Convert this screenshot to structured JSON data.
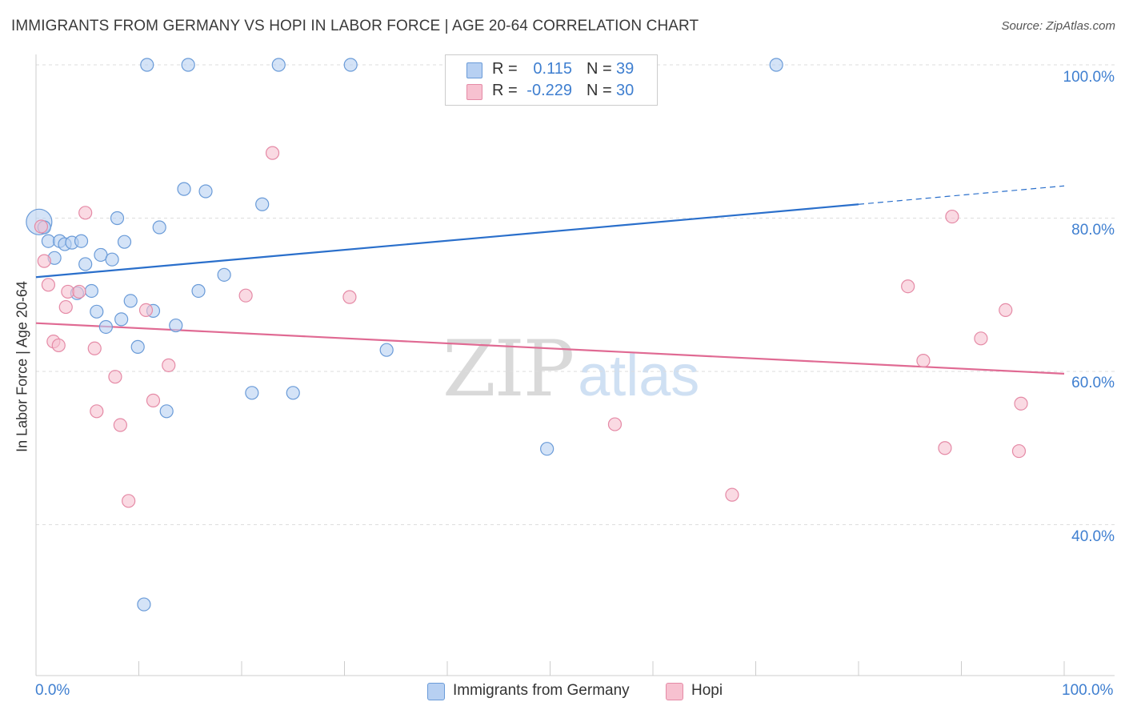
{
  "title": "IMMIGRANTS FROM GERMANY VS HOPI IN LABOR FORCE | AGE 20-64 CORRELATION CHART",
  "source": "Source: ZipAtlas.com",
  "watermark": {
    "zip": "ZIP",
    "atlas": "atlas"
  },
  "colors": {
    "blue_fill": "#b7d0f2",
    "blue_stroke": "#6a9bd8",
    "blue_line": "#2a6fcb",
    "pink_fill": "#f7c1d0",
    "pink_stroke": "#e58aa6",
    "pink_line": "#e06a93",
    "tick_text": "#3f7fd0",
    "grid": "#dddddd"
  },
  "stats": [
    {
      "swatch": "blue",
      "r_label": "R =",
      "r_value": "0.115",
      "n_label": "N =",
      "n_value": "39"
    },
    {
      "swatch": "pink",
      "r_label": "R =",
      "r_value": "-0.229",
      "n_label": "N =",
      "n_value": "30"
    }
  ],
  "legend": [
    {
      "label": "Immigrants from Germany",
      "swatch": "blue"
    },
    {
      "label": "Hopi",
      "swatch": "pink"
    }
  ],
  "chart_data": {
    "type": "scatter",
    "title": "IMMIGRANTS FROM GERMANY VS HOPI IN LABOR FORCE | AGE 20-64 CORRELATION CHART",
    "xlabel": "",
    "ylabel": "In Labor Force | Age 20-64",
    "xlim": [
      0,
      100
    ],
    "ylim": [
      21,
      102
    ],
    "y_ticks": [
      {
        "value": 40,
        "label": "40.0%"
      },
      {
        "value": 60,
        "label": "60.0%"
      },
      {
        "value": 80,
        "label": "80.0%"
      },
      {
        "value": 100,
        "label": "100.0%"
      }
    ],
    "x_tick_labels": {
      "min": "0.0%",
      "max": "100.0%"
    },
    "grid": true,
    "series": [
      {
        "name": "Immigrants from Germany",
        "r": 0.115,
        "n": 39,
        "trend": {
          "x0": 0,
          "y0": 72.3,
          "x1": 80,
          "y1": 81.8,
          "dash_to_x": 100,
          "dash_to_y": 84.2
        },
        "points": [
          {
            "x": 0.3,
            "y": 79.5,
            "big": true
          },
          {
            "x": 0.8,
            "y": 78.8
          },
          {
            "x": 1.2,
            "y": 77.0
          },
          {
            "x": 1.8,
            "y": 74.8
          },
          {
            "x": 2.3,
            "y": 77.0
          },
          {
            "x": 2.8,
            "y": 76.6
          },
          {
            "x": 3.5,
            "y": 76.8
          },
          {
            "x": 4.0,
            "y": 70.2
          },
          {
            "x": 4.4,
            "y": 77.0
          },
          {
            "x": 4.8,
            "y": 74.0
          },
          {
            "x": 5.4,
            "y": 70.5
          },
          {
            "x": 5.9,
            "y": 67.8
          },
          {
            "x": 6.3,
            "y": 75.2
          },
          {
            "x": 6.8,
            "y": 65.8
          },
          {
            "x": 7.4,
            "y": 74.6
          },
          {
            "x": 7.9,
            "y": 80.0
          },
          {
            "x": 8.3,
            "y": 66.8
          },
          {
            "x": 8.6,
            "y": 76.9
          },
          {
            "x": 9.2,
            "y": 69.2
          },
          {
            "x": 9.9,
            "y": 63.2
          },
          {
            "x": 10.5,
            "y": 29.6
          },
          {
            "x": 10.8,
            "y": 100.0
          },
          {
            "x": 11.4,
            "y": 67.9
          },
          {
            "x": 12.0,
            "y": 78.8
          },
          {
            "x": 12.7,
            "y": 54.8
          },
          {
            "x": 13.6,
            "y": 66.0
          },
          {
            "x": 14.4,
            "y": 83.8
          },
          {
            "x": 14.8,
            "y": 100.0
          },
          {
            "x": 15.8,
            "y": 70.5
          },
          {
            "x": 16.5,
            "y": 83.5
          },
          {
            "x": 18.3,
            "y": 72.6
          },
          {
            "x": 21.0,
            "y": 57.2
          },
          {
            "x": 22.0,
            "y": 81.8
          },
          {
            "x": 23.6,
            "y": 100.0
          },
          {
            "x": 25.0,
            "y": 57.2
          },
          {
            "x": 30.6,
            "y": 100.0
          },
          {
            "x": 34.1,
            "y": 62.8
          },
          {
            "x": 49.7,
            "y": 49.9
          },
          {
            "x": 72.0,
            "y": 100.0
          }
        ]
      },
      {
        "name": "Hopi",
        "r": -0.229,
        "n": 30,
        "trend": {
          "x0": 0,
          "y0": 66.3,
          "x1": 100,
          "y1": 59.7
        },
        "points": [
          {
            "x": 0.5,
            "y": 78.9
          },
          {
            "x": 0.8,
            "y": 74.4
          },
          {
            "x": 1.2,
            "y": 71.3
          },
          {
            "x": 1.7,
            "y": 63.9
          },
          {
            "x": 2.2,
            "y": 63.4
          },
          {
            "x": 2.9,
            "y": 68.4
          },
          {
            "x": 3.1,
            "y": 70.4
          },
          {
            "x": 4.2,
            "y": 70.4
          },
          {
            "x": 4.8,
            "y": 80.7
          },
          {
            "x": 5.7,
            "y": 63.0
          },
          {
            "x": 5.9,
            "y": 54.8
          },
          {
            "x": 7.7,
            "y": 59.3
          },
          {
            "x": 8.2,
            "y": 53.0
          },
          {
            "x": 9.0,
            "y": 43.1
          },
          {
            "x": 10.7,
            "y": 68.0
          },
          {
            "x": 11.4,
            "y": 56.2
          },
          {
            "x": 12.9,
            "y": 60.8
          },
          {
            "x": 20.4,
            "y": 69.9
          },
          {
            "x": 23.0,
            "y": 88.5
          },
          {
            "x": 30.5,
            "y": 69.7
          },
          {
            "x": 56.3,
            "y": 53.1
          },
          {
            "x": 67.7,
            "y": 43.9
          },
          {
            "x": 84.8,
            "y": 71.1
          },
          {
            "x": 86.3,
            "y": 61.4
          },
          {
            "x": 88.4,
            "y": 50.0
          },
          {
            "x": 89.1,
            "y": 80.2
          },
          {
            "x": 91.9,
            "y": 64.3
          },
          {
            "x": 94.3,
            "y": 68.0
          },
          {
            "x": 95.6,
            "y": 49.6
          },
          {
            "x": 95.8,
            "y": 55.8
          }
        ]
      }
    ]
  }
}
